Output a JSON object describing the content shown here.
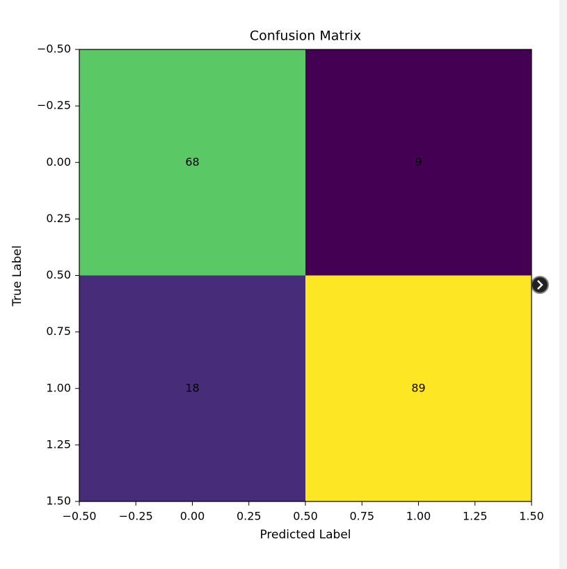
{
  "chart_data": {
    "type": "heatmap",
    "title": "Confusion Matrix",
    "x_label": "Predicted Label",
    "y_label": "True Label",
    "matrix": [
      [
        68,
        9
      ],
      [
        18,
        89
      ]
    ],
    "colors": [
      [
        "#5ac864",
        "#440154"
      ],
      [
        "#472c7a",
        "#fde725"
      ]
    ],
    "xlim": [
      -0.5,
      1.5
    ],
    "ylim": [
      1.5,
      -0.5
    ],
    "xticks": [
      {
        "value": -0.5,
        "label": "−0.50"
      },
      {
        "value": -0.25,
        "label": "−0.25"
      },
      {
        "value": 0,
        "label": "0.00"
      },
      {
        "value": 0.25,
        "label": "0.25"
      },
      {
        "value": 0.5,
        "label": "0.50"
      },
      {
        "value": 0.75,
        "label": "0.75"
      },
      {
        "value": 1,
        "label": "1.00"
      },
      {
        "value": 1.25,
        "label": "1.25"
      },
      {
        "value": 1.5,
        "label": "1.50"
      }
    ],
    "yticks": [
      {
        "value": -0.5,
        "label": "−0.50"
      },
      {
        "value": -0.25,
        "label": "−0.25"
      },
      {
        "value": 0,
        "label": "0.00"
      },
      {
        "value": 0.25,
        "label": "0.25"
      },
      {
        "value": 0.5,
        "label": "0.50"
      },
      {
        "value": 0.75,
        "label": "0.75"
      },
      {
        "value": 1,
        "label": "1.00"
      },
      {
        "value": 1.25,
        "label": "1.25"
      },
      {
        "value": 1.5,
        "label": "1.50"
      }
    ]
  }
}
